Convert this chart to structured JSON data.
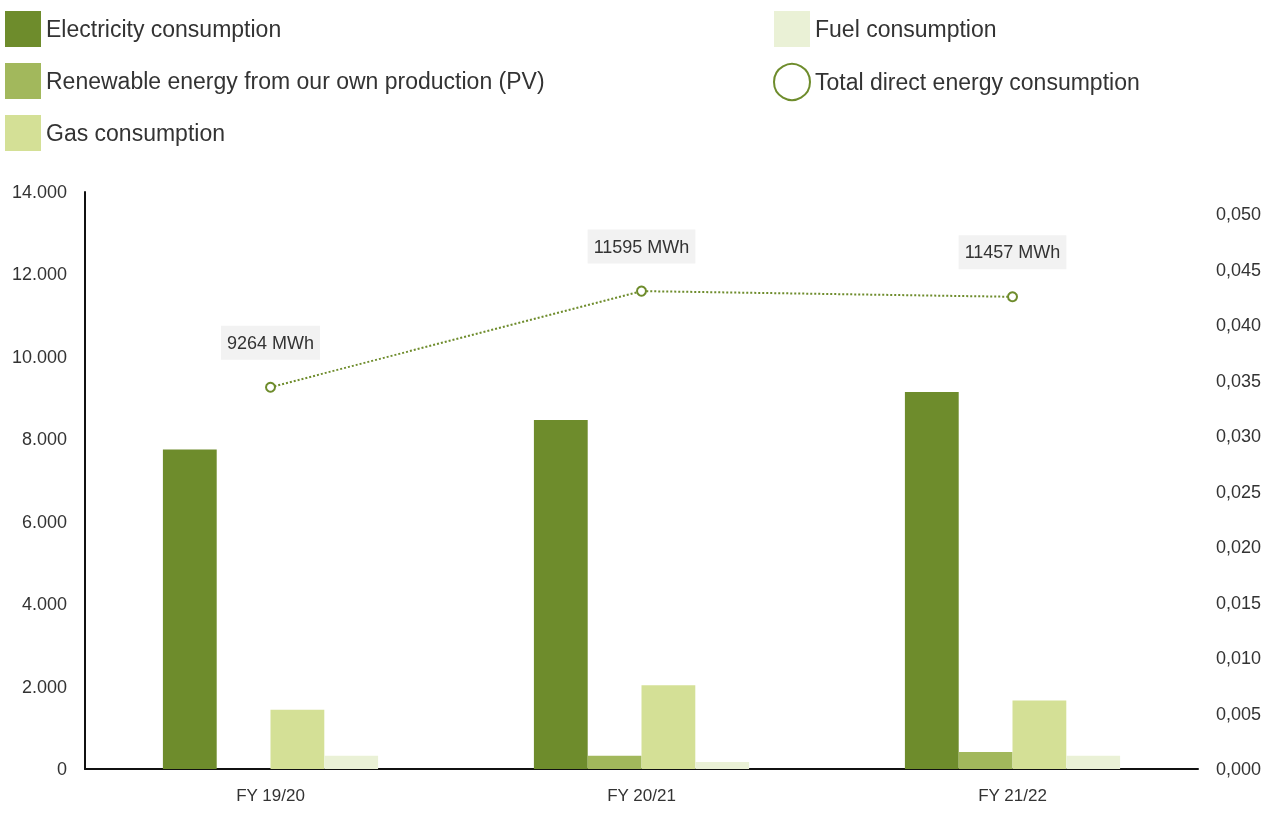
{
  "chart_data": {
    "type": "bar",
    "categories": [
      "FY 19/20",
      "FY 20/21",
      "FY 21/22"
    ],
    "series": [
      {
        "name": "Electricity consumption",
        "color": "#6e8c2c",
        "values": [
          7750,
          8470,
          9150
        ]
      },
      {
        "name": "Renewable energy from our own production (PV)",
        "color": "#a2b85c",
        "values": [
          null,
          320,
          410
        ]
      },
      {
        "name": "Gas consumption",
        "color": "#d4e096",
        "values": [
          1440,
          2030,
          1660
        ]
      },
      {
        "name": "Fuel consumption",
        "color": "#eaf1d6",
        "values": [
          320,
          170,
          320
        ]
      },
      {
        "name": "Total direct energy consumption",
        "type": "line",
        "color": "#6e8c2c",
        "values": [
          9264,
          11595,
          11457
        ],
        "value_labels": [
          "9264 MWh",
          "11595 MWh",
          "11457 MWh"
        ],
        "marker": "circle",
        "line_style": "dotted"
      }
    ],
    "ylim": [
      0,
      14000
    ],
    "yticks": [
      {
        "value": 0,
        "label": "0"
      },
      {
        "value": 2000,
        "label": "2.000"
      },
      {
        "value": 4000,
        "label": "4.000"
      },
      {
        "value": 6000,
        "label": "6.000"
      },
      {
        "value": 8000,
        "label": "8.000"
      },
      {
        "value": 10000,
        "label": "10.000"
      },
      {
        "value": 12000,
        "label": "12.000"
      },
      {
        "value": 14000,
        "label": "14.000"
      }
    ],
    "y2lim": [
      0,
      0.052
    ],
    "y2ticks": [
      {
        "value": 0,
        "label": "0,000"
      },
      {
        "value": 0.005,
        "label": "0,005"
      },
      {
        "value": 0.01,
        "label": "0,010"
      },
      {
        "value": 0.015,
        "label": "0,015"
      },
      {
        "value": 0.02,
        "label": "0,020"
      },
      {
        "value": 0.025,
        "label": "0,025"
      },
      {
        "value": 0.03,
        "label": "0,030"
      },
      {
        "value": 0.035,
        "label": "0,035"
      },
      {
        "value": 0.04,
        "label": "0,040"
      },
      {
        "value": 0.045,
        "label": "0,045"
      },
      {
        "value": 0.05,
        "label": "0,050"
      }
    ],
    "grid": false,
    "legend": "top"
  }
}
